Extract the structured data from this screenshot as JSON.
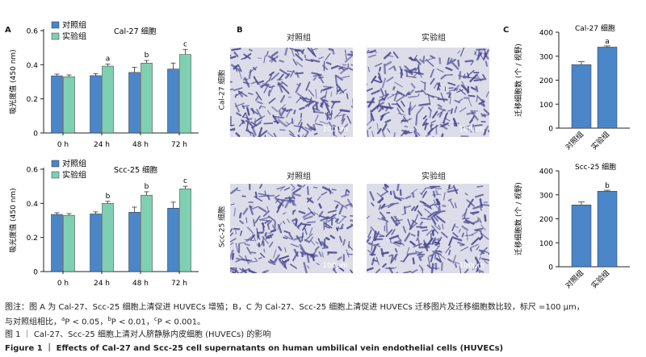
{
  "panels": {
    "a": "A",
    "b": "B",
    "c": "C"
  },
  "panel_b": {
    "col_control": "对照组",
    "col_experiment": "实验组",
    "row_top": "Cal-27 细胞",
    "row_bottom": "Scc-25 细胞",
    "scale_label": "100μm"
  },
  "colors": {
    "control": "#4a86c8",
    "experiment": "#7fcfb2",
    "bar_c": "#4a86c8",
    "micro_bg": "#dcdde8",
    "micro_cell": "#4c4a94"
  },
  "chart_data": [
    {
      "id": "a-top",
      "type": "bar",
      "title": "Cal-27 细胞",
      "ylabel": "吸光度值 (450 nm)",
      "categories": [
        "0 h",
        "24 h",
        "48 h",
        "72 h"
      ],
      "ylim": [
        0,
        0.6
      ],
      "yticks": [
        "0",
        "0.2",
        "0.4",
        "0.6"
      ],
      "series": [
        {
          "name": "对照组",
          "values": [
            0.335,
            0.336,
            0.355,
            0.375
          ],
          "errors": [
            0.01,
            0.012,
            0.03,
            0.035
          ]
        },
        {
          "name": "实验组",
          "values": [
            0.33,
            0.392,
            0.41,
            0.46
          ],
          "errors": [
            0.01,
            0.012,
            0.015,
            0.03
          ]
        }
      ],
      "annotations": [
        "",
        "a",
        "b",
        "c"
      ],
      "legend": "top-left"
    },
    {
      "id": "a-bottom",
      "type": "bar",
      "title": "Scc-25 细胞",
      "ylabel": "吸光度值 (450 nm)",
      "categories": [
        "0 h",
        "24 h",
        "48 h",
        "72 h"
      ],
      "ylim": [
        0,
        0.6
      ],
      "yticks": [
        "0",
        "0.2",
        "0.4",
        "0.6"
      ],
      "series": [
        {
          "name": "对照组",
          "values": [
            0.335,
            0.338,
            0.348,
            0.372
          ],
          "errors": [
            0.01,
            0.012,
            0.03,
            0.035
          ]
        },
        {
          "name": "实验组",
          "values": [
            0.33,
            0.4,
            0.448,
            0.485
          ],
          "errors": [
            0.01,
            0.012,
            0.02,
            0.015
          ]
        }
      ],
      "annotations": [
        "",
        "b",
        "b",
        "c"
      ],
      "legend": "top-left"
    },
    {
      "id": "c-top",
      "type": "bar",
      "title": "Cal-27 细胞",
      "ylabel": "迁移细胞数 (个 / 视野)",
      "categories": [
        "对照组",
        "实验组"
      ],
      "ylim": [
        0,
        400
      ],
      "yticks": [
        "0",
        "100",
        "200",
        "300",
        "400"
      ],
      "values": [
        265,
        338
      ],
      "errors": [
        12,
        5
      ],
      "annotations": [
        "",
        "a"
      ]
    },
    {
      "id": "c-bottom",
      "type": "bar",
      "title": "Scc-25 细胞",
      "ylabel": "迁移细胞数 (个 / 视野)",
      "categories": [
        "对照组",
        "实验组"
      ],
      "ylim": [
        0,
        400
      ],
      "yticks": [
        "0",
        "100",
        "200",
        "300",
        "400"
      ],
      "values": [
        258,
        315
      ],
      "errors": [
        12,
        4
      ],
      "annotations": [
        "",
        "b"
      ]
    }
  ],
  "caption": {
    "note_1": "图注：图 A 为 Cal-27、Scc-25 细胞上清促进 HUVECs 增殖；B，C 为 Cal-27、Scc-25 细胞上清促进 HUVECs 迁移图片及迁移细胞数比较，标尺 =100 μm，",
    "note_2_prefix": "与对照组相比，",
    "sig_a_letter": "a",
    "sig_a_text": "P < 0.05，",
    "sig_b_letter": "b",
    "sig_b_text": "P < 0.01，",
    "sig_c_letter": "c",
    "sig_c_text": "P < 0.001。",
    "figure_cn": "图 1 ｜ Cal-27、Scc-25 细胞上清对人脐静脉内皮细胞 (HUVECs) 的影响",
    "figure_en": "Figure 1 ｜ Effects of Cal-27 and Scc-25 cell supernatants on human umbilical vein endothelial cells (HUVECs)"
  }
}
